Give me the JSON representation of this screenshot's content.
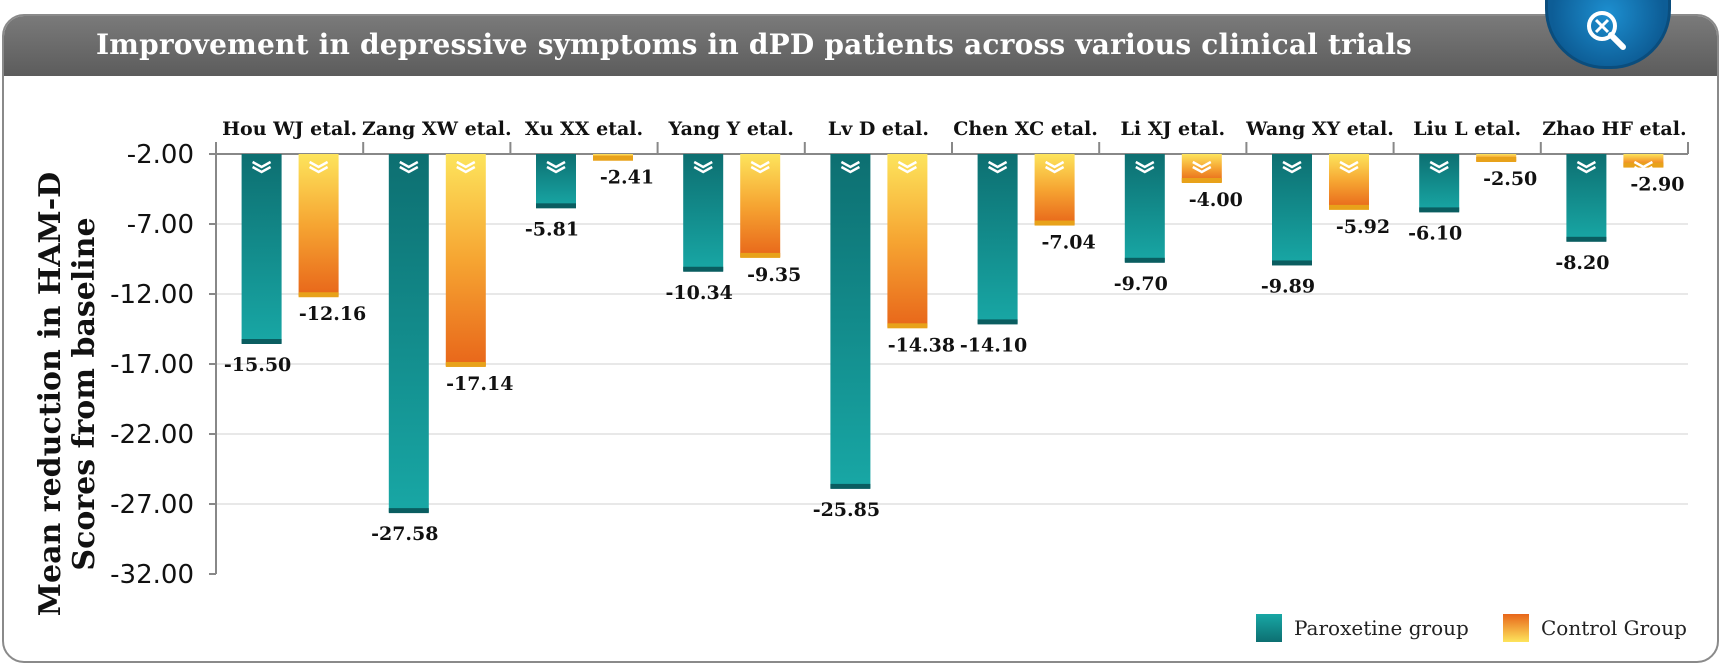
{
  "title": "Improvement in depressive symptoms in dPD patients across various clinical trials",
  "zoom_icon": "magnifier-zoom-icon",
  "colors": {
    "paroxetine_dark": "#0e7577",
    "paroxetine_light": "#17a5a3",
    "control_top": "#fce35a",
    "control_bottom": "#e8701a",
    "axis": "#888888",
    "grid": "#d0d0d0"
  },
  "chart_data": {
    "type": "bar",
    "categories": [
      "Hou WJ etal.",
      "Zang XW etal.",
      "Xu XX etal.",
      "Yang Y etal.",
      "Lv D etal.",
      "Chen XC etal.",
      "Li XJ etal.",
      "Wang XY etal.",
      "Liu L etal.",
      "Zhao HF etal."
    ],
    "series": [
      {
        "name": "Paroxetine group",
        "values": [
          -15.5,
          -27.58,
          -5.81,
          -10.34,
          -25.85,
          -14.1,
          -9.7,
          -9.89,
          -6.1,
          -8.2
        ]
      },
      {
        "name": "Control Group",
        "values": [
          -12.16,
          -17.14,
          -2.41,
          -9.35,
          -14.38,
          -7.04,
          -4.0,
          -5.92,
          -2.5,
          -2.9
        ]
      }
    ],
    "data_labels": {
      "Paroxetine group": [
        "-15.50",
        "-27.58",
        "-5.81",
        "-10.34",
        "-25.85",
        "-14.10",
        "-9.70",
        "-9.89",
        "-6.10",
        "-8.20"
      ],
      "Control Group": [
        "-12.16",
        "-17.14",
        "-2.41",
        "-9.35",
        "-14.38",
        "-7.04",
        "-4.00",
        "-5.92",
        "-2.50",
        "-2.90"
      ]
    },
    "ylabel": "Mean reduction in HAM-D Scores from baseline",
    "ylabel_lines": [
      "Mean reduction in HAM-D",
      "Scores from baseline"
    ],
    "xlabel": "",
    "ylim": [
      -32,
      -2
    ],
    "yticks": [
      -2,
      -7,
      -12,
      -17,
      -22,
      -27,
      -32
    ],
    "ytick_labels": [
      "-2.00",
      "-7.00",
      "-12.00",
      "-17.00",
      "-22.00",
      "-27.00",
      "-32.00"
    ],
    "grid": true,
    "legend_position": "bottom-right",
    "category_axis_position": "top"
  }
}
